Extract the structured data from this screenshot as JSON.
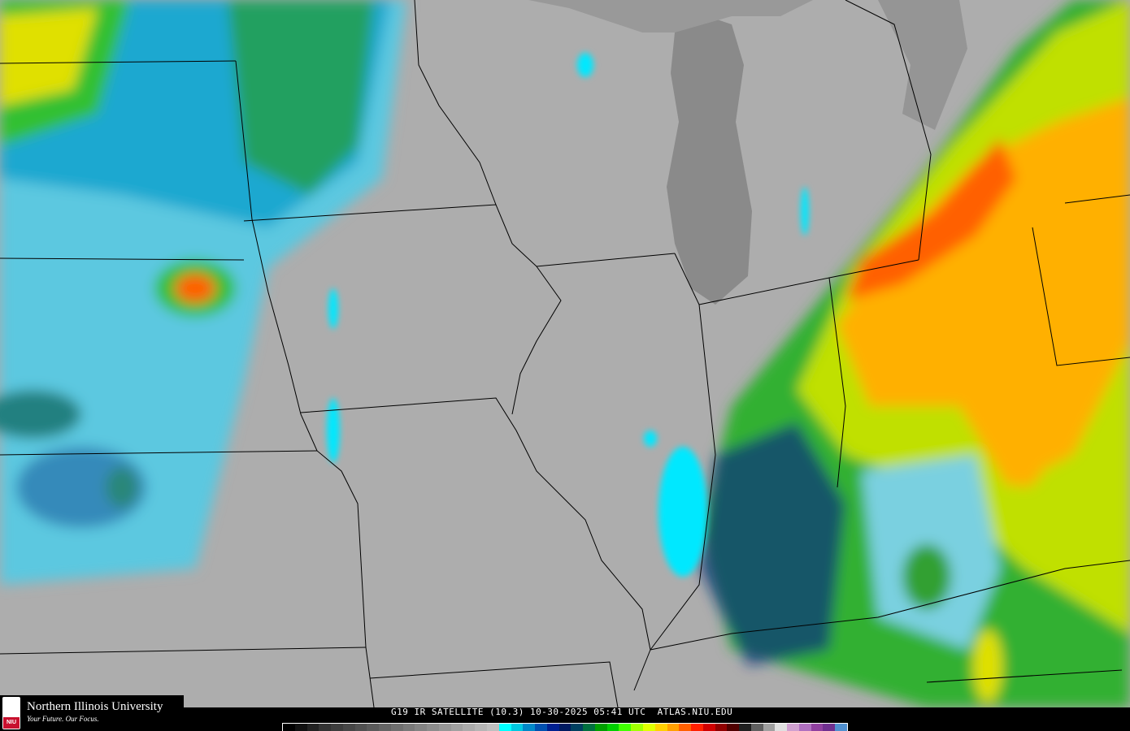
{
  "caption": "G19 IR SATELLITE (10.3) 10-30-2025 05:41 UTC  ATLAS.NIU.EDU",
  "logo": {
    "name": "Northern Illinois University",
    "tagline": "Your Future. Our Focus.",
    "badge": "NIU"
  },
  "colorbar": [
    "#000000",
    "#111111",
    "#222222",
    "#333333",
    "#3d3d3d",
    "#474747",
    "#515151",
    "#5b5b5b",
    "#656565",
    "#6f6f6f",
    "#797979",
    "#838383",
    "#8d8d8d",
    "#979797",
    "#a1a1a1",
    "#ababab",
    "#b5b5b5",
    "#bfbfbf",
    "#00ffff",
    "#00c8e0",
    "#0088c8",
    "#0050b0",
    "#002090",
    "#001a60",
    "#004060",
    "#007040",
    "#00a000",
    "#00d000",
    "#40ff00",
    "#a0ff00",
    "#e0ff00",
    "#ffd000",
    "#ffa000",
    "#ff6000",
    "#ff2000",
    "#d00000",
    "#900000",
    "#500000",
    "#202020",
    "#606060",
    "#a0a0a0",
    "#e0e0e0",
    "#d0a0d0",
    "#b070c0",
    "#9040a0",
    "#703090",
    "#5090d0"
  ],
  "colors": {
    "land": "#adadad",
    "lake": "#8a8a8a",
    "background": "#000000"
  }
}
